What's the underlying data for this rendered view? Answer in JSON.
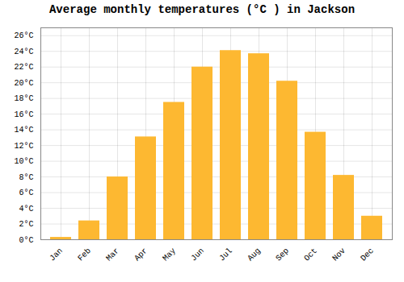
{
  "chart_data": {
    "type": "bar",
    "title": "Average monthly temperatures (°C ) in Jackson",
    "categories": [
      "Jan",
      "Feb",
      "Mar",
      "Apr",
      "May",
      "Jun",
      "Jul",
      "Aug",
      "Sep",
      "Oct",
      "Nov",
      "Dec"
    ],
    "values": [
      0.3,
      2.4,
      8.0,
      13.1,
      17.5,
      22.0,
      24.1,
      23.7,
      20.2,
      13.7,
      8.2,
      3.0
    ],
    "color": "#FDB831",
    "ylim": [
      0,
      27
    ],
    "yticks": [
      {
        "value": 0,
        "label": "0°C"
      },
      {
        "value": 2,
        "label": "2°C"
      },
      {
        "value": 4,
        "label": "4°C"
      },
      {
        "value": 6,
        "label": "6°C"
      },
      {
        "value": 8,
        "label": "8°C"
      },
      {
        "value": 10,
        "label": "10°C"
      },
      {
        "value": 12,
        "label": "12°C"
      },
      {
        "value": 14,
        "label": "14°C"
      },
      {
        "value": 16,
        "label": "16°C"
      },
      {
        "value": 18,
        "label": "18°C"
      },
      {
        "value": 20,
        "label": "20°C"
      },
      {
        "value": 22,
        "label": "22°C"
      },
      {
        "value": 24,
        "label": "24°C"
      },
      {
        "value": 26,
        "label": "26°C"
      }
    ],
    "grid": true
  }
}
